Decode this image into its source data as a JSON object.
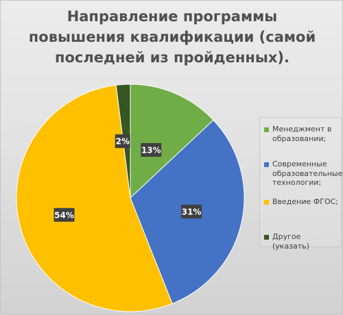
{
  "chart_data": {
    "type": "pie",
    "title": [
      "Направление программы",
      "повышения квалификации (самой",
      "последней из пройденных)."
    ],
    "slices": [
      {
        "name": "Менеджмент в образовании;",
        "value": 13,
        "label": "13%",
        "color": "#70ad47"
      },
      {
        "name": "Современные образовательные технологии;",
        "value": 31,
        "label": "31%",
        "color": "#4472c4"
      },
      {
        "name": "Введение ФГОС;",
        "value": 54,
        "label": "54%",
        "color": "#ffc000"
      },
      {
        "name": "Другое (указать)",
        "value": 2,
        "label": "2%",
        "color": "#375623"
      }
    ],
    "legend_position": "right"
  },
  "legend_lines": [
    [
      "Менеджмент в",
      "образовании;"
    ],
    [
      "Современные",
      "образовательные",
      "технологии;"
    ],
    [
      "Введение ФГОС;"
    ],
    [
      "Другое (указать)"
    ]
  ]
}
